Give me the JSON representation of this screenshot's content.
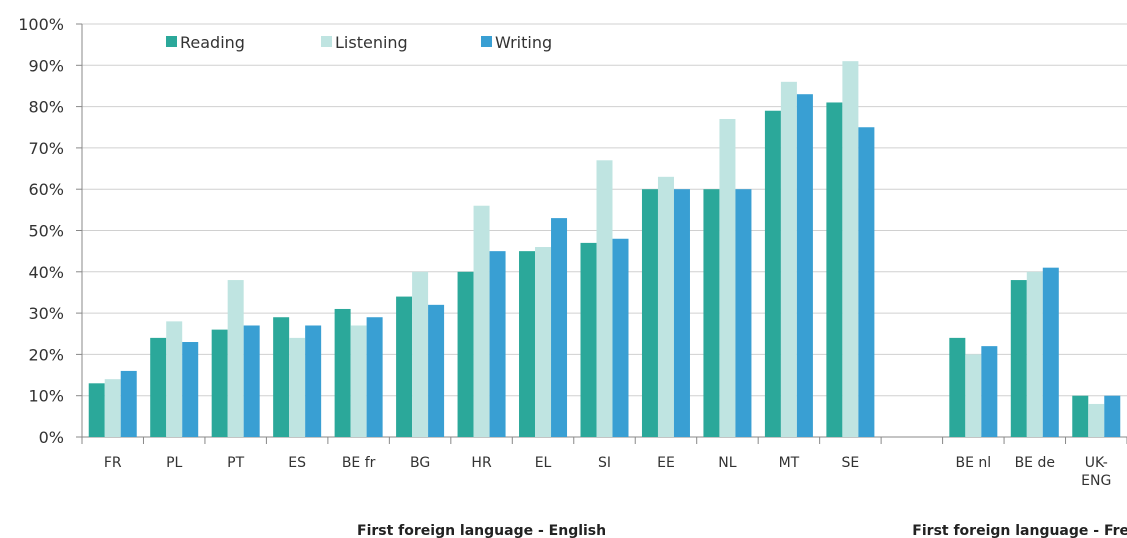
{
  "chart_data": {
    "type": "bar",
    "categories": [
      [
        "FR"
      ],
      [
        "PL"
      ],
      [
        "PT"
      ],
      [
        "ES"
      ],
      [
        "BE fr"
      ],
      [
        "BG"
      ],
      [
        "HR"
      ],
      [
        "EL"
      ],
      [
        "SI"
      ],
      [
        "EE"
      ],
      [
        "NL"
      ],
      [
        "MT"
      ],
      [
        "SE"
      ],
      [
        ""
      ],
      [
        "BE nl"
      ],
      [
        "BE de"
      ],
      [
        "UK-",
        "ENG"
      ]
    ],
    "series": [
      {
        "name": "Reading",
        "color": "#2ba89a",
        "values": [
          13,
          24,
          26,
          29,
          31,
          34,
          40,
          45,
          47,
          60,
          60,
          79,
          81,
          null,
          24,
          38,
          10
        ]
      },
      {
        "name": "Listening",
        "color": "#bfe4e1",
        "values": [
          14,
          28,
          38,
          24,
          27,
          40,
          56,
          46,
          67,
          63,
          77,
          86,
          91,
          null,
          20,
          40,
          8
        ]
      },
      {
        "name": "Writing",
        "color": "#399fd3",
        "values": [
          16,
          23,
          27,
          27,
          29,
          32,
          45,
          53,
          48,
          60,
          60,
          83,
          75,
          null,
          22,
          41,
          10
        ]
      }
    ],
    "ylim": [
      0,
      100
    ],
    "yticks": [
      "0%",
      "10%",
      "20%",
      "30%",
      "40%",
      "50%",
      "60%",
      "70%",
      "80%",
      "90%",
      "100%"
    ],
    "grid": true,
    "legend": "top-left",
    "groups": [
      {
        "label": "First foreign language - English",
        "categories": [
          0,
          12
        ]
      },
      {
        "label": "First foreign language - French",
        "categories": [
          14,
          16
        ]
      }
    ]
  }
}
